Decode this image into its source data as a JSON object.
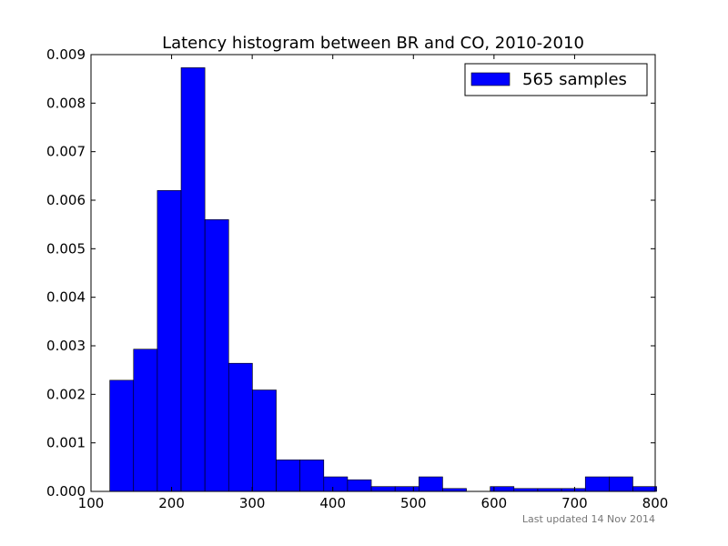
{
  "chart_data": {
    "type": "bar",
    "title": "Latency histogram between BR and CO, 2010-2010",
    "xlabel": "",
    "ylabel": "",
    "xlim": [
      100,
      800
    ],
    "ylim": [
      0,
      0.009
    ],
    "x_ticks": [
      "100",
      "200",
      "300",
      "400",
      "500",
      "600",
      "700",
      "800"
    ],
    "x_tick_values": [
      100,
      200,
      300,
      400,
      500,
      600,
      700,
      800
    ],
    "y_ticks": [
      "0.000",
      "0.001",
      "0.002",
      "0.003",
      "0.004",
      "0.005",
      "0.006",
      "0.007",
      "0.008",
      "0.009"
    ],
    "y_tick_values": [
      0,
      0.001,
      0.002,
      0.003,
      0.004,
      0.005,
      0.006,
      0.007,
      0.008,
      0.009
    ],
    "bin_start": 123.3,
    "bin_width": 29.5,
    "values": [
      0.00229,
      0.00293,
      0.0062,
      0.00873,
      0.0056,
      0.00264,
      0.00209,
      0.00065,
      0.00065,
      0.0003,
      0.00024,
      0.0001,
      0.0001,
      0.0003,
      6e-05,
      0.0,
      0.0001,
      6e-05,
      6e-05,
      6e-05,
      0.0003,
      0.0003,
      0.0001
    ],
    "legend": {
      "label": "565 samples",
      "position": "top-right"
    },
    "bar_color": "#0000ff",
    "edge_color": "#000000",
    "grid": false
  },
  "footer": {
    "text": "Last updated 14 Nov 2014"
  }
}
